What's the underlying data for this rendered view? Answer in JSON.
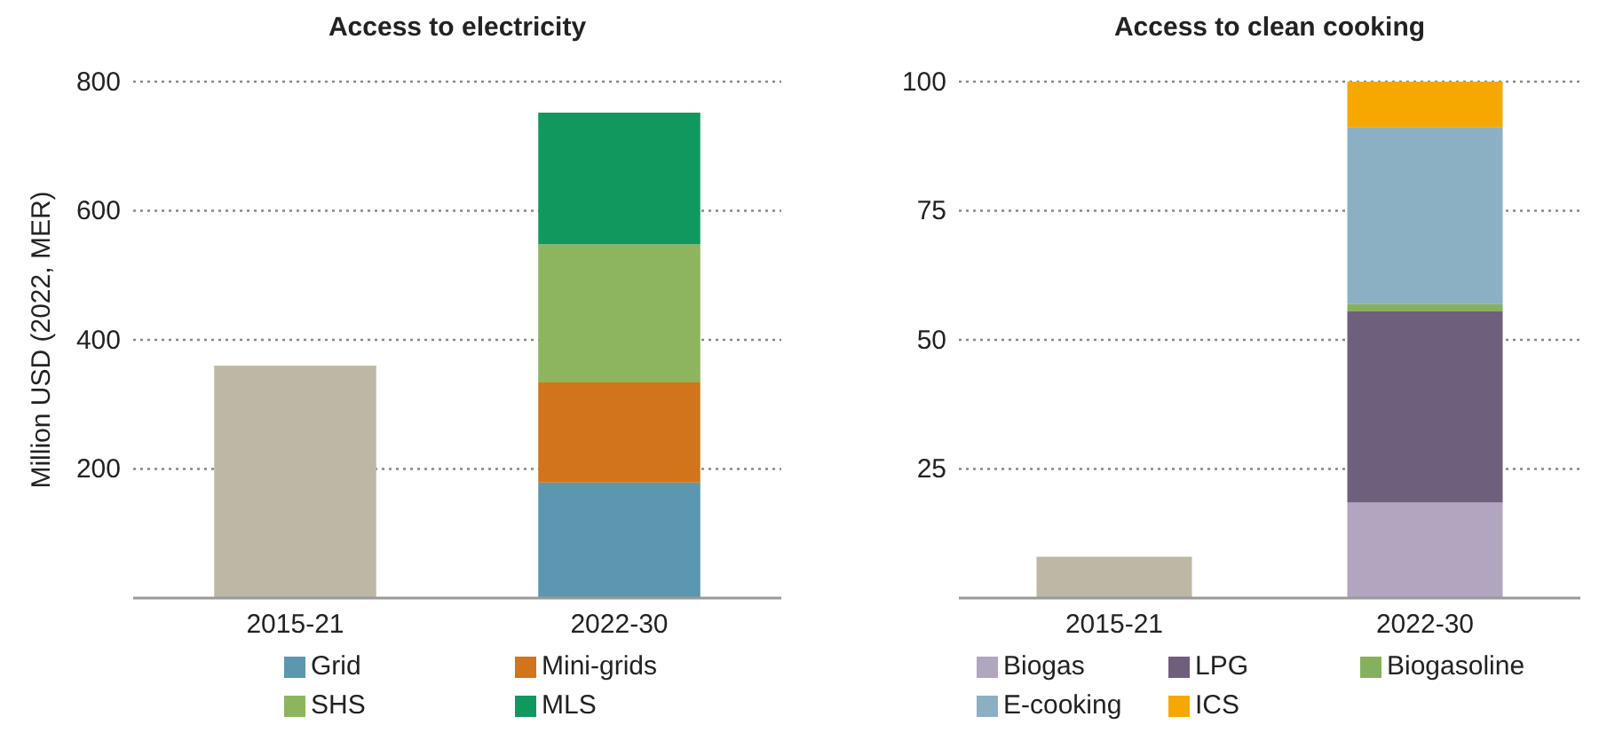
{
  "chart_data": [
    {
      "type": "bar",
      "title": "Access to electricity",
      "ylabel": "Million USD (2022, MER)",
      "categories": [
        "2015-21",
        "2022-30"
      ],
      "stacked": true,
      "ylim": [
        0,
        800
      ],
      "yticks": [
        200,
        400,
        600,
        800
      ],
      "grid": "y",
      "legend": "bottom",
      "series": [
        {
          "color": "#bdb8a6",
          "values": [
            360,
            null
          ]
        },
        {
          "name": "Grid",
          "color": "#5b97ae",
          "values": [
            null,
            179
          ]
        },
        {
          "name": "Mini-grids",
          "color": "#d2741b",
          "values": [
            null,
            155
          ]
        },
        {
          "name": "SHS",
          "color": "#8db55f",
          "values": [
            null,
            214
          ]
        },
        {
          "name": "MLS",
          "color": "#11985f",
          "values": [
            null,
            204
          ]
        }
      ]
    },
    {
      "type": "bar",
      "title": "Access to clean cooking",
      "categories": [
        "2015-21",
        "2022-30"
      ],
      "stacked": true,
      "ylim": [
        0,
        100
      ],
      "yticks": [
        25,
        50,
        75,
        100
      ],
      "grid": "y",
      "legend": "bottom",
      "series": [
        {
          "color": "#bdb8a6",
          "values": [
            8,
            null
          ]
        },
        {
          "name": "Biogas",
          "color": "#b1a5bf",
          "values": [
            null,
            18.5
          ]
        },
        {
          "name": "LPG",
          "color": "#6e5f7c",
          "values": [
            null,
            37
          ]
        },
        {
          "name": "Biogasoline",
          "color": "#86b15c",
          "values": [
            null,
            1.4
          ]
        },
        {
          "name": "E-cooking",
          "color": "#8bb0c4",
          "values": [
            null,
            34.3
          ]
        },
        {
          "name": "ICS",
          "color": "#f7a800",
          "values": [
            null,
            8.8
          ]
        }
      ]
    }
  ]
}
